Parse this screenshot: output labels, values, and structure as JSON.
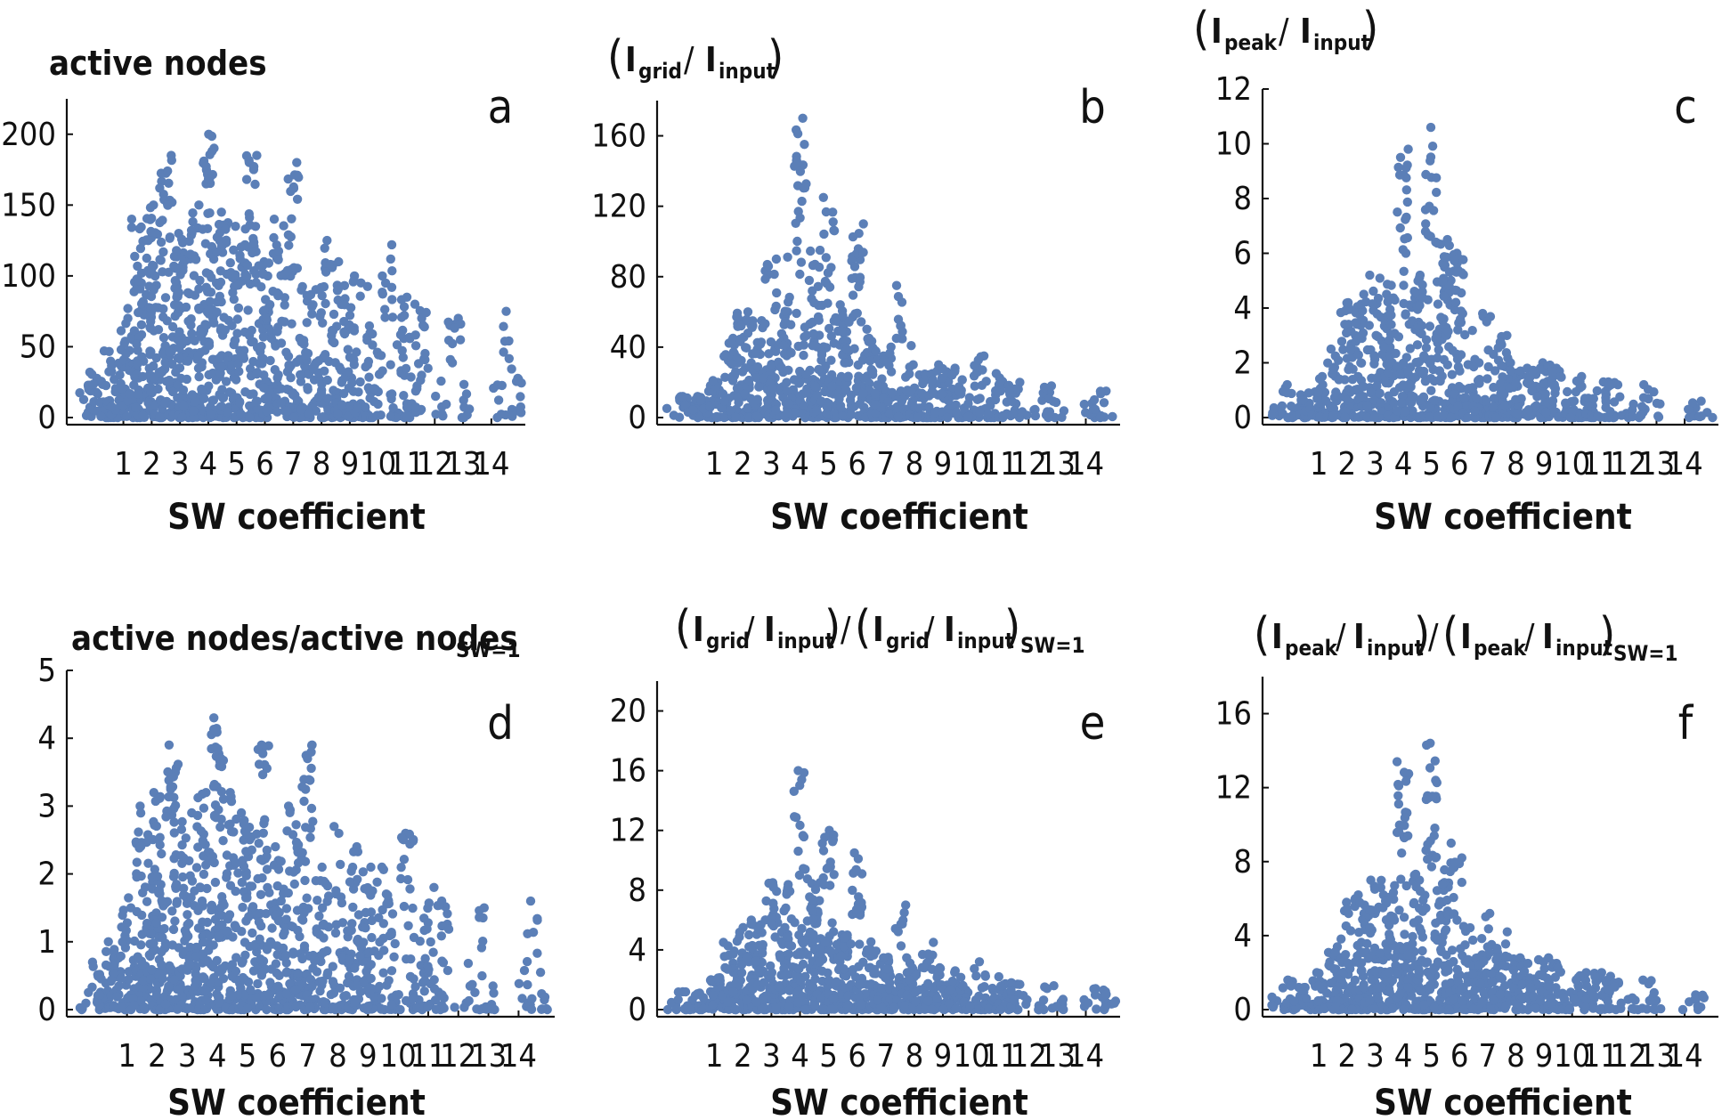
{
  "colors": {
    "point": "#5b7fb7",
    "axis": "#111111",
    "background": "#ffffff"
  },
  "chart_data": [
    {
      "id": "a",
      "type": "scatter",
      "letter": "a",
      "title": "active nodes",
      "xlabel": "SW coefficient",
      "xticks": [
        1,
        2,
        3,
        4,
        5,
        6,
        7,
        8,
        9,
        10,
        11,
        12,
        13,
        14
      ],
      "yticks": [
        0,
        50,
        100,
        150,
        200
      ],
      "xlim": [
        -1,
        15.2
      ],
      "ylim": [
        0,
        225
      ],
      "columns": [
        {
          "x": -0.1,
          "top": 32,
          "n": 8
        },
        {
          "x": 0.5,
          "top": 47,
          "n": 10
        },
        {
          "x": 1.0,
          "top": 70,
          "n": 14
        },
        {
          "x": 1.5,
          "top": 140,
          "n": 22
        },
        {
          "x": 2.0,
          "top": 150,
          "n": 24
        },
        {
          "x": 2.5,
          "top": 185,
          "n": 24
        },
        {
          "x": 3.0,
          "top": 130,
          "n": 22
        },
        {
          "x": 3.5,
          "top": 150,
          "n": 22
        },
        {
          "x": 4.0,
          "top": 200,
          "n": 26
        },
        {
          "x": 4.5,
          "top": 145,
          "n": 22
        },
        {
          "x": 5.0,
          "top": 135,
          "n": 20
        },
        {
          "x": 5.5,
          "top": 185,
          "n": 20
        },
        {
          "x": 6.0,
          "top": 110,
          "n": 18
        },
        {
          "x": 6.5,
          "top": 140,
          "n": 18
        },
        {
          "x": 7.0,
          "top": 180,
          "n": 18
        },
        {
          "x": 7.5,
          "top": 90,
          "n": 14
        },
        {
          "x": 8.0,
          "top": 125,
          "n": 14
        },
        {
          "x": 8.5,
          "top": 110,
          "n": 14
        },
        {
          "x": 9.0,
          "top": 100,
          "n": 14
        },
        {
          "x": 9.5,
          "top": 95,
          "n": 12
        },
        {
          "x": 10.3,
          "top": 122,
          "n": 12
        },
        {
          "x": 11.0,
          "top": 85,
          "n": 10
        },
        {
          "x": 11.5,
          "top": 80,
          "n": 8
        },
        {
          "x": 12.7,
          "top": 70,
          "n": 8
        },
        {
          "x": 14.5,
          "top": 75,
          "n": 8
        }
      ]
    },
    {
      "id": "b",
      "type": "scatter",
      "letter": "b",
      "title": "(I_grid / I_input)",
      "title_parts": {
        "main1": "I",
        "sub1": "grid",
        "sep": " / ",
        "main2": "I",
        "sub2": "input"
      },
      "xlabel": "SW coefficient",
      "xticks": [
        1,
        2,
        3,
        4,
        5,
        6,
        7,
        8,
        9,
        10,
        11,
        12,
        13,
        14
      ],
      "yticks": [
        0,
        40,
        80,
        120,
        160
      ],
      "xlim": [
        -1,
        15.2
      ],
      "ylim": [
        0,
        180
      ],
      "columns": [
        {
          "x": -0.1,
          "top": 12,
          "n": 6
        },
        {
          "x": 0.5,
          "top": 12,
          "n": 6
        },
        {
          "x": 1.0,
          "top": 20,
          "n": 8
        },
        {
          "x": 1.5,
          "top": 45,
          "n": 14
        },
        {
          "x": 2.0,
          "top": 60,
          "n": 16
        },
        {
          "x": 2.5,
          "top": 55,
          "n": 16
        },
        {
          "x": 3.0,
          "top": 90,
          "n": 18
        },
        {
          "x": 3.5,
          "top": 60,
          "n": 16
        },
        {
          "x": 4.0,
          "top": 170,
          "n": 22
        },
        {
          "x": 4.5,
          "top": 95,
          "n": 20
        },
        {
          "x": 5.0,
          "top": 125,
          "n": 20
        },
        {
          "x": 5.5,
          "top": 55,
          "n": 16
        },
        {
          "x": 6.0,
          "top": 110,
          "n": 18
        },
        {
          "x": 6.5,
          "top": 45,
          "n": 14
        },
        {
          "x": 7.0,
          "top": 35,
          "n": 12
        },
        {
          "x": 7.5,
          "top": 75,
          "n": 14
        },
        {
          "x": 8.0,
          "top": 30,
          "n": 10
        },
        {
          "x": 8.5,
          "top": 25,
          "n": 10
        },
        {
          "x": 9.0,
          "top": 30,
          "n": 10
        },
        {
          "x": 9.5,
          "top": 28,
          "n": 10
        },
        {
          "x": 10.3,
          "top": 35,
          "n": 10
        },
        {
          "x": 11.0,
          "top": 25,
          "n": 8
        },
        {
          "x": 11.5,
          "top": 20,
          "n": 6
        },
        {
          "x": 12.7,
          "top": 18,
          "n": 6
        },
        {
          "x": 14.5,
          "top": 15,
          "n": 6
        }
      ]
    },
    {
      "id": "c",
      "type": "scatter",
      "letter": "c",
      "title": "(I_peak / I_input)",
      "title_parts": {
        "main1": "I",
        "sub1": "peak",
        "sep": " / ",
        "main2": "I",
        "sub2": "input"
      },
      "xlabel": "SW coefficient",
      "xticks": [
        1,
        2,
        3,
        4,
        5,
        6,
        7,
        8,
        9,
        10,
        11,
        12,
        13,
        14
      ],
      "yticks": [
        0,
        2,
        4,
        6,
        8,
        10,
        12
      ],
      "xlim": [
        -1,
        15.2
      ],
      "ylim": [
        0,
        12
      ],
      "columns": [
        {
          "x": -0.1,
          "top": 1.2,
          "n": 6
        },
        {
          "x": 0.5,
          "top": 0.9,
          "n": 6
        },
        {
          "x": 1.0,
          "top": 1.5,
          "n": 8
        },
        {
          "x": 1.5,
          "top": 2.5,
          "n": 12
        },
        {
          "x": 2.0,
          "top": 4.2,
          "n": 16
        },
        {
          "x": 2.5,
          "top": 4.5,
          "n": 16
        },
        {
          "x": 3.0,
          "top": 5.2,
          "n": 18
        },
        {
          "x": 3.5,
          "top": 4.5,
          "n": 16
        },
        {
          "x": 4.0,
          "top": 9.8,
          "n": 22
        },
        {
          "x": 4.5,
          "top": 5.2,
          "n": 18
        },
        {
          "x": 5.0,
          "top": 10.6,
          "n": 22
        },
        {
          "x": 5.5,
          "top": 6.5,
          "n": 18
        },
        {
          "x": 6.0,
          "top": 6.0,
          "n": 16
        },
        {
          "x": 6.5,
          "top": 2.0,
          "n": 12
        },
        {
          "x": 7.0,
          "top": 3.8,
          "n": 12
        },
        {
          "x": 7.5,
          "top": 3.0,
          "n": 12
        },
        {
          "x": 8.0,
          "top": 2.0,
          "n": 10
        },
        {
          "x": 8.5,
          "top": 1.8,
          "n": 10
        },
        {
          "x": 9.0,
          "top": 2.0,
          "n": 10
        },
        {
          "x": 9.5,
          "top": 1.8,
          "n": 10
        },
        {
          "x": 10.3,
          "top": 1.5,
          "n": 8
        },
        {
          "x": 11.0,
          "top": 1.3,
          "n": 8
        },
        {
          "x": 11.5,
          "top": 1.3,
          "n": 6
        },
        {
          "x": 12.7,
          "top": 1.2,
          "n": 6
        },
        {
          "x": 14.5,
          "top": 0.6,
          "n": 4
        }
      ]
    },
    {
      "id": "d",
      "type": "scatter",
      "letter": "d",
      "title": "active nodes/active nodes",
      "title_sub": "SW=1",
      "xlabel": "SW coefficient",
      "xticks": [
        1,
        2,
        3,
        4,
        5,
        6,
        7,
        8,
        9,
        10,
        11,
        12,
        13,
        14
      ],
      "yticks": [
        0,
        1,
        2,
        3,
        4,
        5
      ],
      "xlim": [
        -1,
        15.2
      ],
      "ylim": [
        0,
        5
      ],
      "columns": [
        {
          "x": -0.1,
          "top": 0.7,
          "n": 8
        },
        {
          "x": 0.5,
          "top": 1.0,
          "n": 10
        },
        {
          "x": 1.0,
          "top": 1.5,
          "n": 14
        },
        {
          "x": 1.5,
          "top": 3.0,
          "n": 22
        },
        {
          "x": 2.0,
          "top": 3.2,
          "n": 24
        },
        {
          "x": 2.5,
          "top": 3.9,
          "n": 24
        },
        {
          "x": 3.0,
          "top": 2.9,
          "n": 22
        },
        {
          "x": 3.5,
          "top": 3.2,
          "n": 22
        },
        {
          "x": 4.0,
          "top": 4.3,
          "n": 26
        },
        {
          "x": 4.5,
          "top": 3.2,
          "n": 22
        },
        {
          "x": 5.0,
          "top": 2.9,
          "n": 20
        },
        {
          "x": 5.5,
          "top": 3.9,
          "n": 20
        },
        {
          "x": 6.0,
          "top": 2.4,
          "n": 18
        },
        {
          "x": 6.5,
          "top": 3.0,
          "n": 18
        },
        {
          "x": 7.0,
          "top": 3.9,
          "n": 18
        },
        {
          "x": 7.5,
          "top": 1.9,
          "n": 14
        },
        {
          "x": 8.0,
          "top": 2.7,
          "n": 14
        },
        {
          "x": 8.5,
          "top": 2.4,
          "n": 14
        },
        {
          "x": 9.0,
          "top": 2.1,
          "n": 14
        },
        {
          "x": 9.5,
          "top": 2.1,
          "n": 12
        },
        {
          "x": 10.3,
          "top": 2.6,
          "n": 12
        },
        {
          "x": 11.0,
          "top": 1.8,
          "n": 10
        },
        {
          "x": 11.5,
          "top": 1.6,
          "n": 8
        },
        {
          "x": 12.7,
          "top": 1.5,
          "n": 8
        },
        {
          "x": 14.5,
          "top": 1.6,
          "n": 8
        }
      ]
    },
    {
      "id": "e",
      "type": "scatter",
      "letter": "e",
      "title": "(I_grid / I_input)/(I_grid / I_input)_SW=1",
      "title_parts": {
        "main1": "I",
        "sub1": "grid",
        "sep": " / ",
        "main2": "I",
        "sub2": "input",
        "outer_sub": "SW=1"
      },
      "xlabel": "SW coefficient",
      "xticks": [
        1,
        2,
        3,
        4,
        5,
        6,
        7,
        8,
        9,
        10,
        11,
        12,
        13,
        14
      ],
      "yticks": [
        0,
        4,
        8,
        12,
        16,
        20
      ],
      "xlim": [
        -1,
        15.2
      ],
      "ylim": [
        0,
        22
      ],
      "columns": [
        {
          "x": -0.1,
          "top": 1.2,
          "n": 6
        },
        {
          "x": 0.5,
          "top": 1.1,
          "n": 6
        },
        {
          "x": 1.0,
          "top": 2.0,
          "n": 8
        },
        {
          "x": 1.5,
          "top": 4.5,
          "n": 14
        },
        {
          "x": 2.0,
          "top": 5.5,
          "n": 16
        },
        {
          "x": 2.5,
          "top": 6.0,
          "n": 16
        },
        {
          "x": 3.0,
          "top": 8.5,
          "n": 18
        },
        {
          "x": 3.5,
          "top": 5.5,
          "n": 16
        },
        {
          "x": 4.0,
          "top": 16,
          "n": 22
        },
        {
          "x": 4.5,
          "top": 8.5,
          "n": 20
        },
        {
          "x": 5.0,
          "top": 12,
          "n": 20
        },
        {
          "x": 5.5,
          "top": 5.0,
          "n": 16
        },
        {
          "x": 6.0,
          "top": 10.5,
          "n": 18
        },
        {
          "x": 6.5,
          "top": 4.0,
          "n": 14
        },
        {
          "x": 7.0,
          "top": 3.5,
          "n": 12
        },
        {
          "x": 7.5,
          "top": 7.0,
          "n": 14
        },
        {
          "x": 8.0,
          "top": 2.8,
          "n": 10
        },
        {
          "x": 8.5,
          "top": 4.5,
          "n": 10
        },
        {
          "x": 9.0,
          "top": 2.8,
          "n": 10
        },
        {
          "x": 9.5,
          "top": 2.6,
          "n": 10
        },
        {
          "x": 10.3,
          "top": 3.2,
          "n": 10
        },
        {
          "x": 11.0,
          "top": 2.2,
          "n": 8
        },
        {
          "x": 11.5,
          "top": 1.8,
          "n": 6
        },
        {
          "x": 12.7,
          "top": 1.6,
          "n": 6
        },
        {
          "x": 14.5,
          "top": 1.4,
          "n": 6
        }
      ]
    },
    {
      "id": "f",
      "type": "scatter",
      "letter": "f",
      "title": "(I_peak / I_input)/(I_peak / I_input)_SW=1",
      "title_parts": {
        "main1": "I",
        "sub1": "peak",
        "sep": " / ",
        "main2": "I",
        "sub2": "input",
        "outer_sub": "SW=1"
      },
      "xlabel": "SW coefficient",
      "xticks": [
        1,
        2,
        3,
        4,
        5,
        6,
        7,
        8,
        9,
        10,
        11,
        12,
        13,
        14
      ],
      "yticks": [
        0,
        4,
        8,
        12,
        16
      ],
      "xlim": [
        -1,
        15.2
      ],
      "ylim": [
        0,
        18
      ],
      "columns": [
        {
          "x": -0.1,
          "top": 1.6,
          "n": 6
        },
        {
          "x": 0.5,
          "top": 1.2,
          "n": 6
        },
        {
          "x": 1.0,
          "top": 2.0,
          "n": 8
        },
        {
          "x": 1.5,
          "top": 3.4,
          "n": 12
        },
        {
          "x": 2.0,
          "top": 5.8,
          "n": 16
        },
        {
          "x": 2.5,
          "top": 6.2,
          "n": 16
        },
        {
          "x": 3.0,
          "top": 7.0,
          "n": 18
        },
        {
          "x": 3.5,
          "top": 6.2,
          "n": 16
        },
        {
          "x": 4.0,
          "top": 13.4,
          "n": 22
        },
        {
          "x": 4.5,
          "top": 7.0,
          "n": 18
        },
        {
          "x": 5.0,
          "top": 14.4,
          "n": 22
        },
        {
          "x": 5.5,
          "top": 9.0,
          "n": 18
        },
        {
          "x": 6.0,
          "top": 8.2,
          "n": 16
        },
        {
          "x": 6.5,
          "top": 2.8,
          "n": 12
        },
        {
          "x": 7.0,
          "top": 5.2,
          "n": 12
        },
        {
          "x": 7.5,
          "top": 4.2,
          "n": 12
        },
        {
          "x": 8.0,
          "top": 2.8,
          "n": 10
        },
        {
          "x": 8.5,
          "top": 2.5,
          "n": 10
        },
        {
          "x": 9.0,
          "top": 2.8,
          "n": 10
        },
        {
          "x": 9.5,
          "top": 2.5,
          "n": 10
        },
        {
          "x": 10.3,
          "top": 2.0,
          "n": 8
        },
        {
          "x": 11.0,
          "top": 2.0,
          "n": 8
        },
        {
          "x": 11.5,
          "top": 1.8,
          "n": 6
        },
        {
          "x": 12.7,
          "top": 1.6,
          "n": 6
        },
        {
          "x": 14.5,
          "top": 0.8,
          "n": 4
        }
      ]
    }
  ]
}
